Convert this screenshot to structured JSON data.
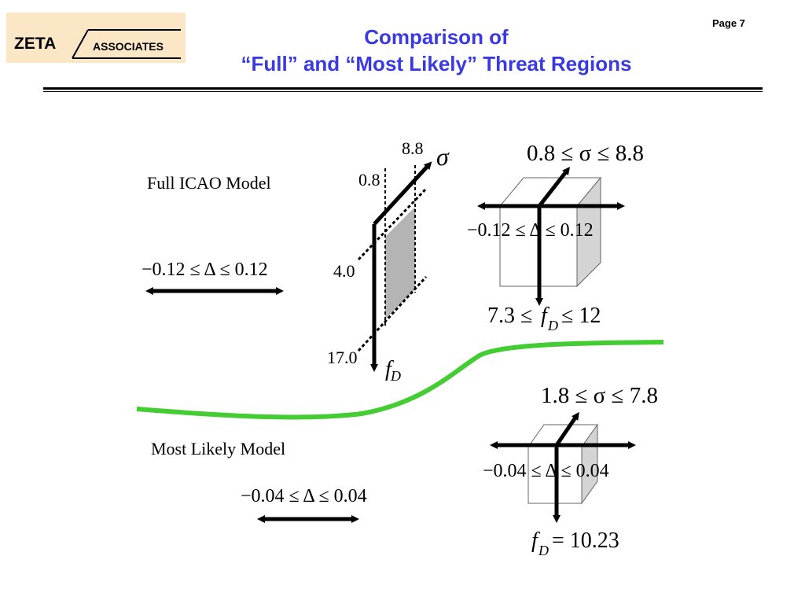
{
  "header": {
    "logo": {
      "left_text": "ZETA",
      "right_text": "ASSOCIATES"
    },
    "page_label": "Page 7",
    "title_line1": "Comparison of",
    "title_line2": "“Full” and “Most Likely” Threat Regions"
  },
  "full_model": {
    "label": "Full ICAO Model",
    "delta_range": "−0.12 ≤ Δ ≤ 0.12",
    "axis_sigma_symbol": "σ",
    "axis_fd_symbol": "f",
    "axis_fd_subscript": "D",
    "sigma_ticks": [
      "0.8",
      "8.8"
    ],
    "fd_ticks": [
      "4.0",
      "17.0"
    ],
    "box_sigma_range": "0.8 ≤ σ ≤ 8.8",
    "box_delta_range": "−0.12 ≤ Δ ≤ 0.12",
    "box_fd_range_prefix": "7.3 ≤",
    "box_fd_symbol": "f",
    "box_fd_subscript": "D",
    "box_fd_range_suffix": "≤ 12"
  },
  "likely_model": {
    "label": "Most Likely Model",
    "delta_range": "−0.04 ≤ Δ ≤ 0.04",
    "box_sigma_range": "1.8 ≤ σ ≤ 7.8",
    "box_delta_range": "−0.04 ≤ Δ ≤ 0.04",
    "box_fd_symbol": "f",
    "box_fd_subscript": "D",
    "box_fd_value": "= 10.23"
  },
  "colors": {
    "title": "#3a3ae0",
    "logo_bg": "#fbe6c6",
    "divider": "#44cc33",
    "region_fill": "#b4b4b4",
    "box_side": "#d4d4d4"
  }
}
